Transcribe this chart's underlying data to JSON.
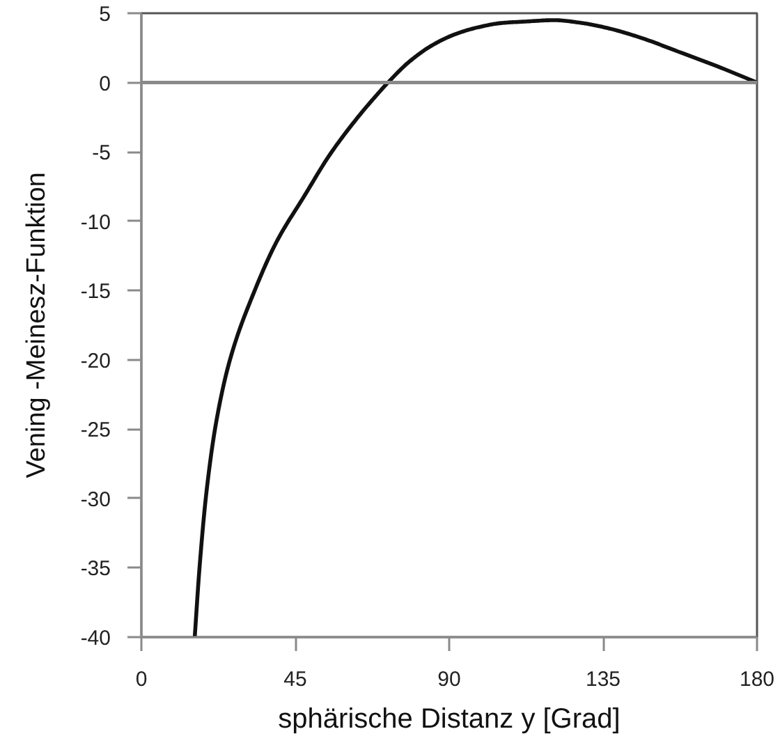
{
  "chart_data": {
    "type": "line",
    "xlabel": "sphärische Distanz y [Grad]",
    "ylabel": "Vening -Meinesz-Funktion",
    "x": [
      15.6,
      17.0,
      19.0,
      21.8,
      25.9,
      33.3,
      39.5,
      47.6,
      55.1,
      63.3,
      68.8,
      72.1,
      78.3,
      85.1,
      91.9,
      98.7,
      105.5,
      112.3,
      120.5,
      128.7,
      136.8,
      146.4,
      157.3,
      168.1,
      180
    ],
    "series": [
      {
        "color": "#111111",
        "values": [
          -40,
          -35,
          -29.6,
          -24.6,
          -20.0,
          -14.9,
          -11.5,
          -8.2,
          -5.2,
          -2.5,
          -0.9,
          0,
          1.5,
          2.7,
          3.5,
          4.0,
          4.3,
          4.4,
          4.5,
          4.3,
          3.9,
          3.2,
          2.2,
          1.2,
          0
        ]
      }
    ],
    "xlim": [
      0,
      180
    ],
    "xticks": [
      0,
      45,
      90,
      135,
      180
    ],
    "ylim": [
      -40,
      5
    ],
    "yticks": [
      5,
      0,
      -5,
      -10,
      -15,
      -20,
      -25,
      -30,
      -35,
      -40
    ],
    "ref_lines": [
      {
        "axis": "y",
        "value": 0,
        "color": "#8a8a8a"
      }
    ],
    "grid": false
  }
}
